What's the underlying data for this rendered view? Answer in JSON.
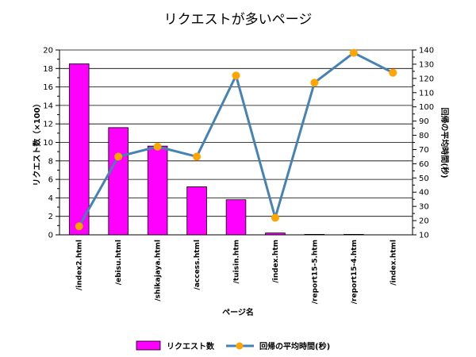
{
  "chart_data": {
    "type": "bar",
    "title": "リクエストが多いページ",
    "xlabel": "ページ名",
    "ylabel": "リクエスト数（×100）",
    "ylabel_right": "回帰の平均時間(秒)",
    "ylim": [
      0,
      20
    ],
    "ylim_right": [
      10,
      140
    ],
    "grid": true,
    "legend_position": "bottom",
    "categories": [
      "/index2.html",
      "/ebisu.html",
      "/shikajaya.html",
      "/access.html",
      "/tuisin.htm",
      "/index.htm",
      "/report15-5.htm",
      "/report15-4.htm",
      "/index.html"
    ],
    "series": [
      {
        "name": "リクエスト数",
        "type": "bar",
        "axis": "left",
        "color": "#ff00ff",
        "values": [
          18.5,
          11.6,
          9.6,
          5.2,
          3.8,
          0.2,
          0.05,
          0.05,
          0.0
        ]
      },
      {
        "name": "回帰の平均時間(秒)",
        "type": "line",
        "axis": "right",
        "color": "#4682b4",
        "marker_color": "#ffa500",
        "values": [
          16,
          65,
          72,
          65,
          122,
          22,
          117,
          138,
          124
        ]
      }
    ]
  }
}
